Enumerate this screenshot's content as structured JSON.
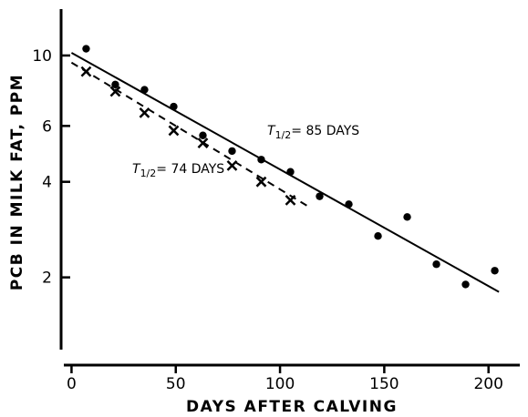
{
  "chart_data": {
    "type": "scatter",
    "xlabel": "DAYS AFTER CALVING",
    "ylabel": "PCB IN MILK FAT, PPM",
    "y_scale": "log",
    "xlim": [
      -5,
      215
    ],
    "ylim": [
      1.2,
      14
    ],
    "x_ticks": [
      0,
      50,
      100,
      150,
      200
    ],
    "y_ticks": [
      2,
      4,
      6,
      10
    ],
    "series": [
      {
        "marker": "dot",
        "x": [
          7,
          21,
          35,
          49,
          63,
          77,
          91,
          105,
          119,
          133,
          147,
          161,
          175,
          189,
          203
        ],
        "y": [
          10.5,
          8.1,
          7.8,
          6.9,
          5.6,
          5.0,
          4.7,
          4.3,
          3.6,
          3.4,
          2.7,
          3.1,
          2.2,
          1.9,
          2.1
        ]
      },
      {
        "marker": "x",
        "x": [
          7,
          21,
          35,
          49,
          63,
          77,
          91,
          105
        ],
        "y": [
          8.9,
          7.7,
          6.6,
          5.8,
          5.3,
          4.5,
          4.0,
          3.5
        ]
      }
    ],
    "fits": [
      {
        "style": "solid",
        "x": [
          0,
          205
        ],
        "y": [
          10.2,
          1.8
        ],
        "label_lines": [
          "T",
          "1/2",
          "= 85 DAYS"
        ]
      },
      {
        "style": "dashed",
        "x": [
          0,
          115
        ],
        "y": [
          9.5,
          3.3
        ],
        "label_lines": [
          "T",
          "1/2",
          "= 74 DAYS"
        ]
      }
    ]
  }
}
